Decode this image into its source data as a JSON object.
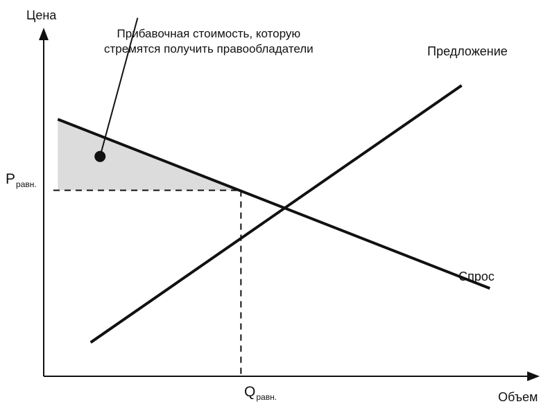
{
  "chart_data": {
    "type": "line",
    "title": "",
    "xlabel": "Объем",
    "ylabel": "Цена",
    "xlim": [
      0,
      10
    ],
    "ylim": [
      0,
      10
    ],
    "grid": false,
    "legend": "none",
    "series": [
      {
        "name": "Предложение",
        "points": [
          {
            "x": 1.0,
            "y": 1.0
          },
          {
            "x": 8.9,
            "y": 8.6
          }
        ]
      },
      {
        "name": "Спрос",
        "points": [
          {
            "x": 0.3,
            "y": 7.6
          },
          {
            "x": 9.5,
            "y": 2.6
          }
        ]
      }
    ],
    "equilibrium": {
      "x": 4.2,
      "y": 5.5,
      "x_label_main": "Q",
      "x_label_sub": "равн.",
      "y_label_main": "P",
      "y_label_sub": "равн."
    },
    "shaded_region": {
      "points": [
        {
          "x": 0.3,
          "y": 7.6
        },
        {
          "x": 0.3,
          "y": 5.5
        },
        {
          "x": 4.2,
          "y": 5.5
        }
      ],
      "color": "#dcdcdc"
    },
    "annotation": {
      "lines": [
        "Прибавочная стоимость, которую",
        "стремятся получить правообладатели"
      ],
      "marker": {
        "x": 1.2,
        "y": 6.5
      },
      "arrow_to": {
        "x": 2.0,
        "y": 10.6
      }
    },
    "colors": {
      "ink": "#111111",
      "shade": "#dcdcdc"
    }
  }
}
